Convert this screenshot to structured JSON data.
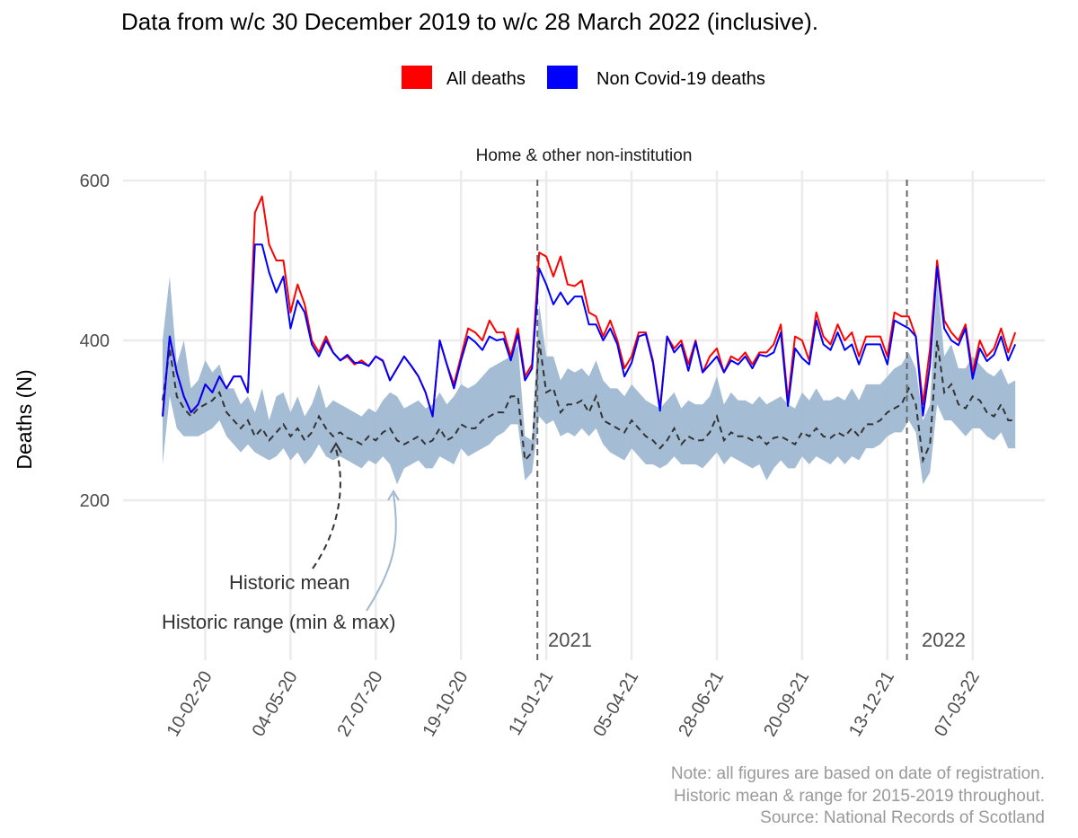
{
  "title": "Data from w/c 30 December 2019 to w/c 28 March 2022 (inclusive).",
  "legend": [
    {
      "label": "All deaths",
      "color": "#ff0000"
    },
    {
      "label": "Non Covid-19 deaths",
      "color": "#0000ff"
    }
  ],
  "facet_label": "Home & other non-institution",
  "notes": [
    "Note: all figures are based on date of registration.",
    "Historic mean & range for 2015-2019 throughout.",
    "Source: National Records of Scotland"
  ],
  "annotations": {
    "mean": "Historic mean",
    "range": "Historic range (min & max)",
    "year_2021": "2021",
    "year_2022": "2022"
  },
  "colors": {
    "all": "#ff0000",
    "noncovid": "#0000ff",
    "band": "#9fb8d2",
    "mean": "#333333",
    "grid": "#ebebeb",
    "vline": "#666666"
  },
  "chart_data": {
    "type": "line",
    "ylabel": "Deaths (N)",
    "ylim": [
      0,
      620
    ],
    "yticks": [
      200,
      400,
      600
    ],
    "x_start_week": "30-12-19",
    "x_tick_labels": [
      "10-02-20",
      "04-05-20",
      "27-07-20",
      "19-10-20",
      "11-01-21",
      "05-04-21",
      "28-06-21",
      "20-09-21",
      "13-12-21",
      "07-03-22"
    ],
    "vertical_lines": [
      {
        "label": "2021"
      },
      {
        "label": "2022"
      }
    ],
    "series": [
      {
        "name": "All deaths",
        "values": [
          305,
          405,
          360,
          330,
          310,
          320,
          345,
          335,
          355,
          340,
          355,
          355,
          335,
          560,
          580,
          520,
          500,
          500,
          435,
          470,
          445,
          400,
          385,
          405,
          385,
          375,
          380,
          370,
          375,
          368,
          380,
          375,
          350,
          365,
          380,
          368,
          355,
          335,
          305,
          400,
          370,
          345,
          380,
          415,
          410,
          400,
          425,
          410,
          410,
          380,
          415,
          355,
          370,
          510,
          505,
          480,
          505,
          470,
          468,
          475,
          435,
          430,
          405,
          425,
          400,
          365,
          380,
          410,
          410,
          375,
          315,
          405,
          390,
          400,
          370,
          400,
          360,
          380,
          390,
          360,
          380,
          375,
          385,
          370,
          385,
          385,
          395,
          420,
          325,
          405,
          400,
          375,
          435,
          405,
          395,
          420,
          400,
          410,
          380,
          405,
          405,
          405,
          380,
          435,
          430,
          430,
          405,
          320,
          390,
          500,
          425,
          410,
          400,
          420,
          360,
          400,
          380,
          390,
          415,
          385,
          410
        ],
        "color": "#ff0000"
      },
      {
        "name": "Non Covid-19 deaths",
        "values": [
          305,
          405,
          360,
          330,
          310,
          320,
          345,
          335,
          355,
          340,
          355,
          355,
          335,
          520,
          520,
          485,
          460,
          480,
          415,
          450,
          435,
          395,
          380,
          400,
          385,
          375,
          382,
          372,
          372,
          368,
          380,
          374,
          350,
          365,
          380,
          368,
          355,
          335,
          305,
          400,
          370,
          340,
          375,
          405,
          398,
          388,
          405,
          400,
          402,
          375,
          408,
          350,
          365,
          490,
          470,
          445,
          460,
          445,
          455,
          455,
          420,
          420,
          400,
          415,
          395,
          355,
          372,
          405,
          408,
          372,
          312,
          405,
          385,
          395,
          362,
          398,
          360,
          370,
          380,
          360,
          375,
          370,
          380,
          365,
          382,
          380,
          385,
          410,
          318,
          390,
          378,
          370,
          425,
          395,
          388,
          410,
          388,
          395,
          370,
          395,
          395,
          395,
          370,
          425,
          420,
          415,
          405,
          306,
          370,
          492,
          415,
          400,
          394,
          415,
          352,
          390,
          374,
          382,
          405,
          375,
          395
        ],
        "color": "#0000ff"
      }
    ],
    "historic_mean": [
      325,
      390,
      330,
      315,
      305,
      315,
      320,
      325,
      335,
      310,
      300,
      290,
      300,
      280,
      290,
      275,
      285,
      295,
      280,
      290,
      275,
      285,
      305,
      290,
      280,
      285,
      278,
      275,
      270,
      280,
      275,
      285,
      290,
      275,
      270,
      275,
      280,
      270,
      275,
      290,
      275,
      280,
      295,
      290,
      290,
      300,
      305,
      310,
      310,
      330,
      330,
      250,
      260,
      400,
      335,
      340,
      310,
      320,
      320,
      325,
      310,
      330,
      300,
      295,
      290,
      285,
      300,
      290,
      280,
      275,
      265,
      275,
      290,
      270,
      280,
      275,
      275,
      285,
      305,
      275,
      285,
      280,
      280,
      275,
      280,
      270,
      278,
      280,
      275,
      270,
      285,
      280,
      290,
      280,
      278,
      285,
      280,
      290,
      280,
      295,
      295,
      300,
      310,
      315,
      320,
      340,
      320,
      250,
      270,
      400,
      335,
      345,
      320,
      315,
      330,
      325,
      310,
      305,
      320,
      300,
      300
    ],
    "historic_min": [
      245,
      330,
      290,
      280,
      280,
      280,
      285,
      290,
      300,
      280,
      270,
      260,
      270,
      260,
      255,
      250,
      255,
      265,
      250,
      260,
      245,
      255,
      270,
      255,
      250,
      255,
      250,
      245,
      240,
      250,
      245,
      255,
      245,
      220,
      240,
      245,
      250,
      240,
      240,
      255,
      250,
      245,
      265,
      255,
      260,
      265,
      270,
      280,
      285,
      295,
      295,
      225,
      235,
      305,
      295,
      300,
      280,
      285,
      280,
      290,
      280,
      290,
      270,
      260,
      255,
      250,
      265,
      255,
      245,
      245,
      240,
      245,
      255,
      245,
      245,
      245,
      240,
      250,
      260,
      245,
      255,
      250,
      245,
      240,
      245,
      225,
      240,
      250,
      240,
      240,
      255,
      245,
      255,
      250,
      245,
      255,
      245,
      255,
      250,
      265,
      265,
      270,
      280,
      285,
      285,
      300,
      285,
      220,
      235,
      320,
      300,
      300,
      290,
      280,
      290,
      290,
      280,
      275,
      285,
      265,
      265
    ],
    "historic_max": [
      400,
      480,
      370,
      400,
      340,
      350,
      375,
      360,
      370,
      340,
      340,
      320,
      330,
      310,
      340,
      300,
      330,
      335,
      310,
      330,
      305,
      320,
      345,
      315,
      325,
      320,
      315,
      310,
      305,
      315,
      310,
      325,
      335,
      330,
      315,
      320,
      325,
      315,
      320,
      335,
      320,
      330,
      345,
      340,
      345,
      355,
      365,
      370,
      375,
      380,
      395,
      280,
      275,
      445,
      380,
      380,
      350,
      365,
      360,
      365,
      355,
      375,
      350,
      340,
      340,
      330,
      345,
      335,
      325,
      320,
      315,
      325,
      335,
      315,
      325,
      320,
      320,
      330,
      355,
      320,
      335,
      325,
      325,
      320,
      330,
      320,
      325,
      330,
      320,
      315,
      335,
      325,
      340,
      325,
      325,
      330,
      325,
      340,
      325,
      345,
      345,
      345,
      355,
      365,
      370,
      385,
      365,
      300,
      320,
      475,
      380,
      395,
      365,
      365,
      380,
      370,
      360,
      355,
      365,
      345,
      350
    ]
  }
}
